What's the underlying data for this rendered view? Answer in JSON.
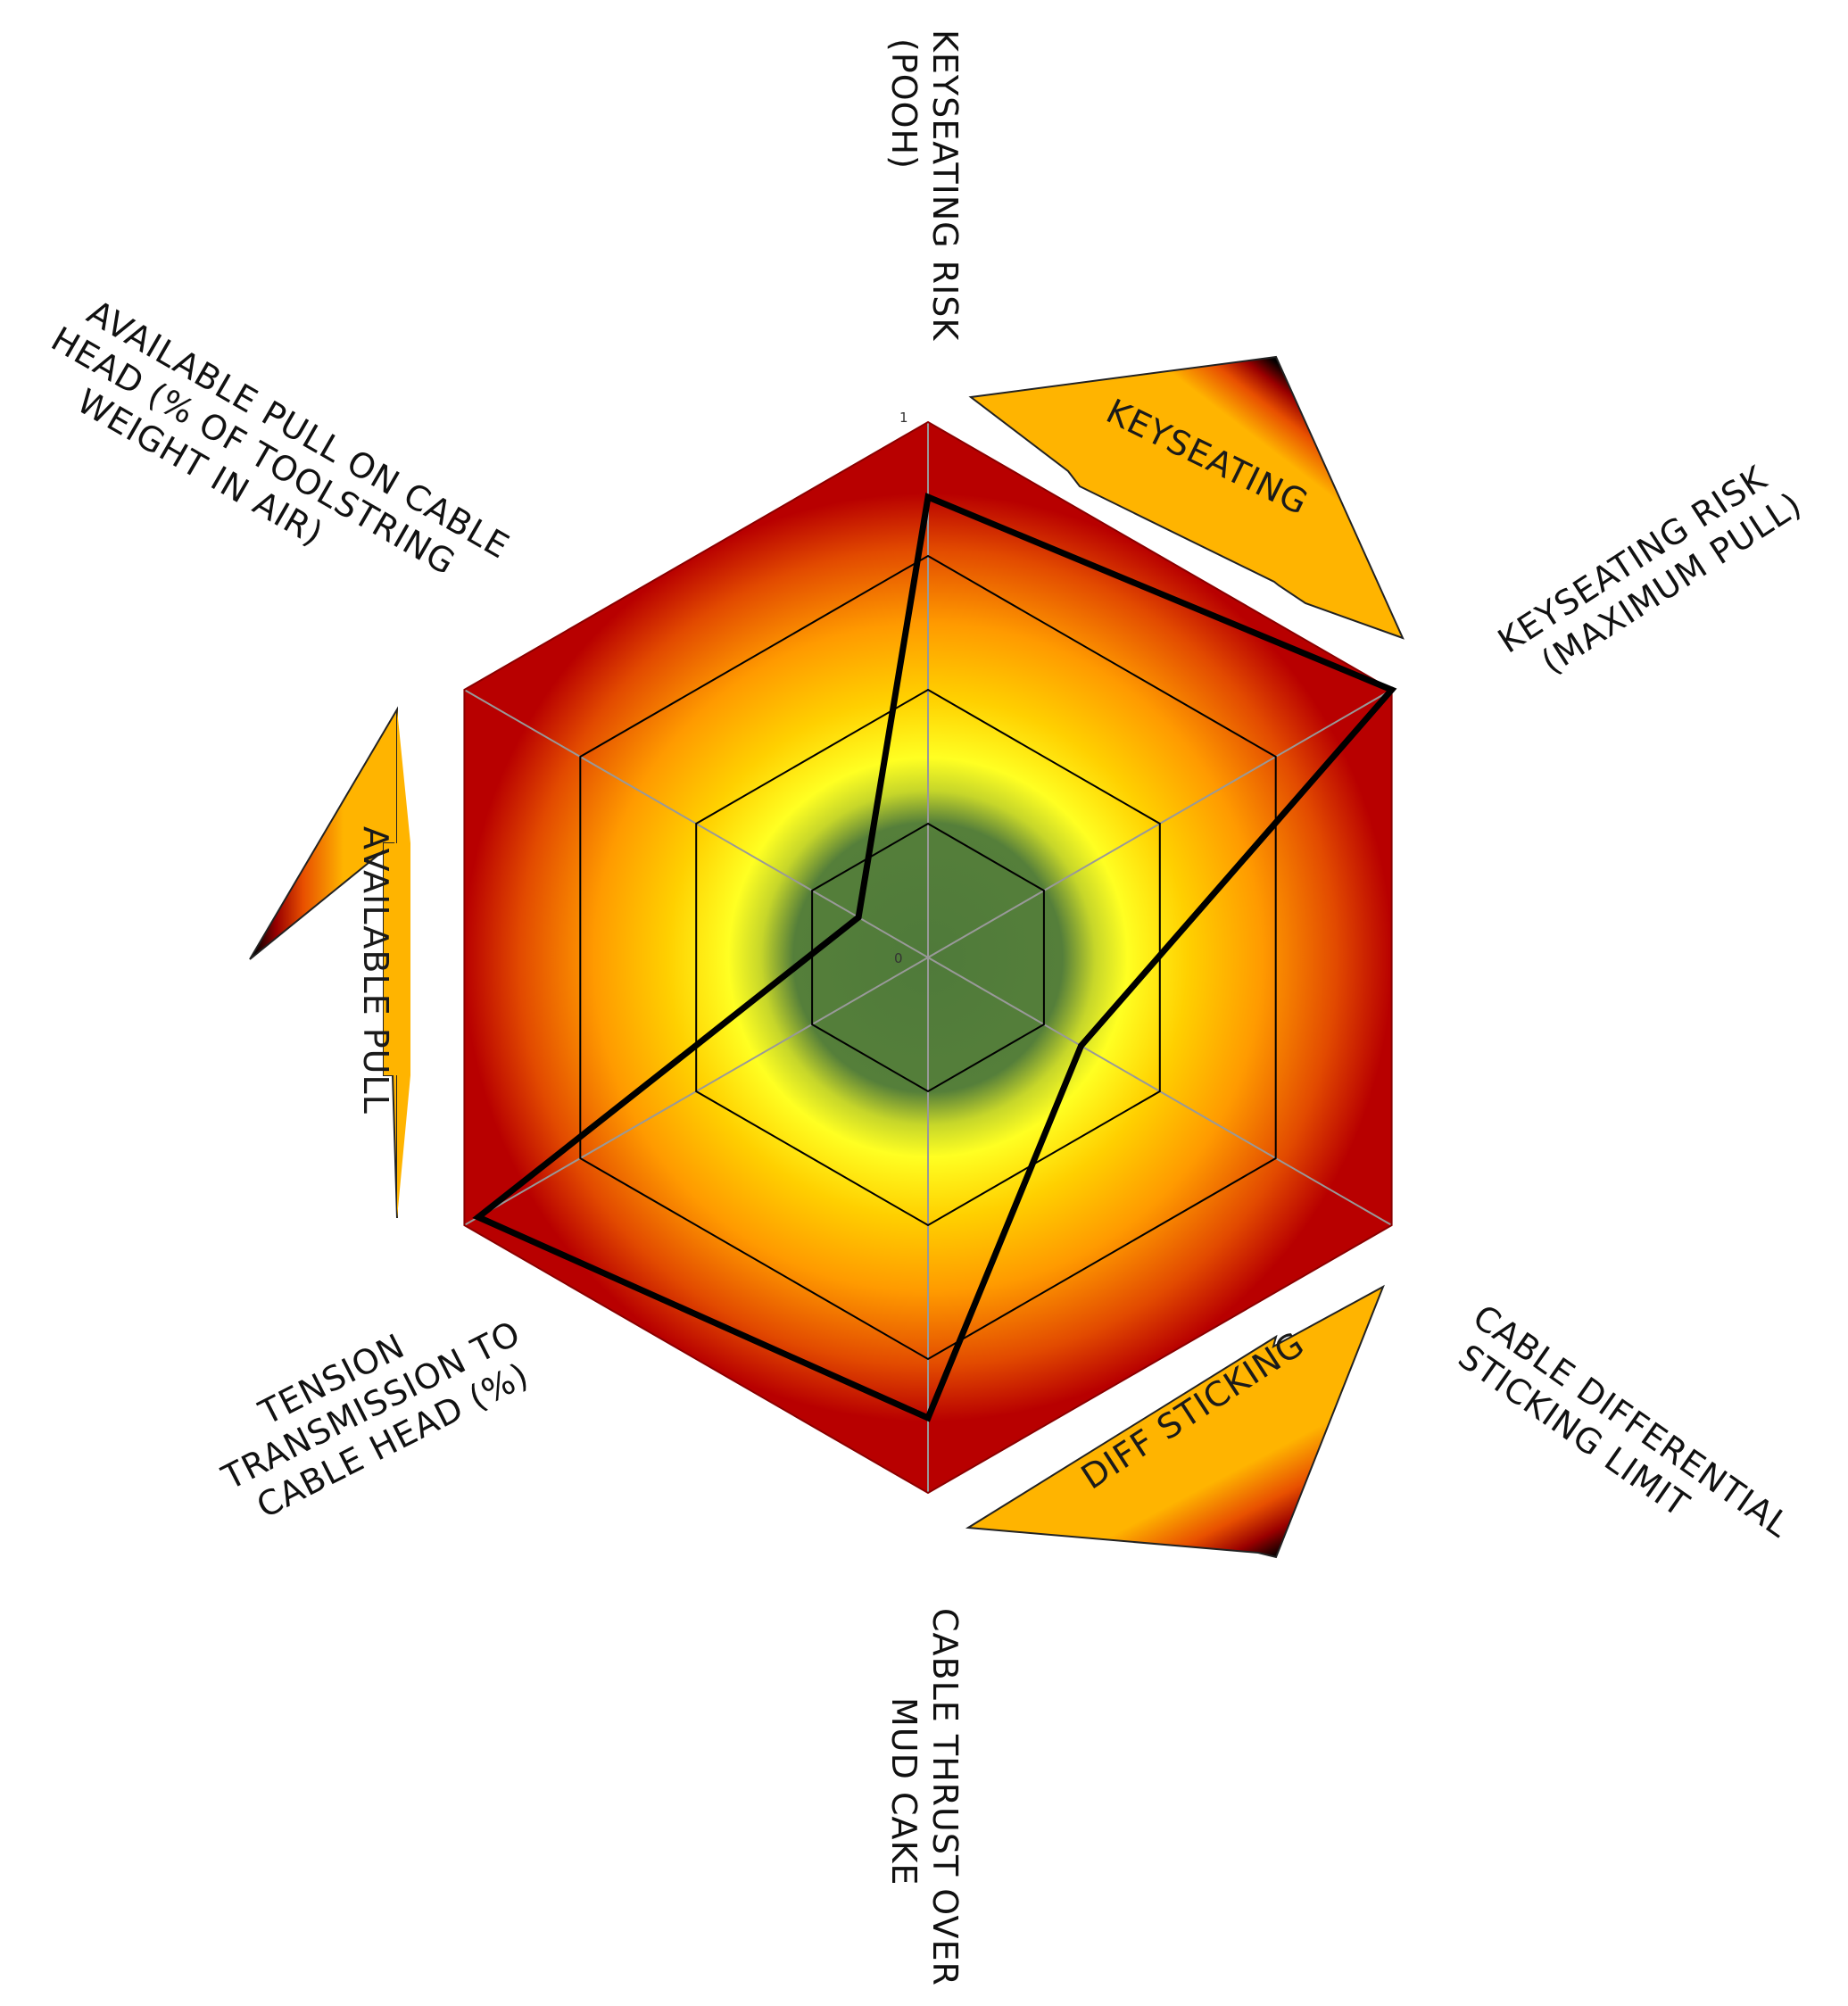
{
  "chart_data": {
    "type": "radar",
    "axes": [
      {
        "label_lines": [
          "KEYSEATING RISK",
          "(POOH)"
        ]
      },
      {
        "label_lines": [
          "KEYSEATING RISK",
          "(MAXIMUM PULL)"
        ]
      },
      {
        "label_lines": [
          "CABLE DIFFERENTIAL",
          "STICKING LIMIT"
        ]
      },
      {
        "label_lines": [
          "CABLE THRUST OVER",
          "MUD CAKE"
        ]
      },
      {
        "label_lines": [
          "TENSION",
          "TRANSMISSION TO",
          "CABLE HEAD (%)"
        ]
      },
      {
        "label_lines": [
          "AVAILABLE PULL ON CABLE",
          "HEAD (% OF TOOLSTRING",
          "WEIGHT IN AIR)"
        ]
      }
    ],
    "series": [
      {
        "values": [
          0.86,
          1.0,
          0.33,
          0.86,
          0.97,
          0.15
        ]
      }
    ],
    "range": [
      0,
      1
    ],
    "ticks": [
      "1",
      "0"
    ],
    "zones": [
      {
        "label": "KEYSEATING"
      },
      {
        "label": "DIFF STICKING"
      },
      {
        "label": "AVAILABLE PULL"
      }
    ],
    "colors": {
      "center_green": "#4f7a3a",
      "yellow": "#ffff22",
      "orange": "#ff9a00",
      "red": "#b80000",
      "arrow_fill": "#ffb400",
      "series_line": "#000000",
      "grid_line": "#000000",
      "spoke_line": "#999999"
    }
  }
}
